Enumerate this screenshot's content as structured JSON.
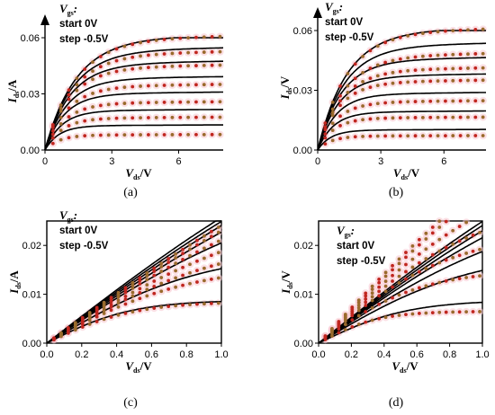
{
  "chart_data": [
    {
      "panel_label": "(a)",
      "type": "line",
      "xlim": [
        0,
        8
      ],
      "ylim": [
        0,
        0.06
      ],
      "xticks": [
        "0",
        "3",
        "6"
      ],
      "yticks": [
        "0.00",
        "0.03",
        "0.06"
      ],
      "xtick_values": [
        0,
        3,
        6
      ],
      "ytick_values": [
        0,
        0.03,
        0.06
      ],
      "arrow_axes": true,
      "annotation": [
        "V",
        "gs",
        ":",
        "start 0V",
        "step -0.5V"
      ],
      "xlabel": {
        "main": "V",
        "sub": "ds",
        "unit": "/V"
      },
      "ylabel": {
        "main": "I",
        "sub": "ds",
        "unit": "/A"
      },
      "model_curves": [
        {
          "sat": 0.0595,
          "vsat": 2.2
        },
        {
          "sat": 0.053,
          "vsat": 2.0
        },
        {
          "sat": 0.046,
          "vsat": 1.8
        },
        {
          "sat": 0.038,
          "vsat": 1.6
        },
        {
          "sat": 0.03,
          "vsat": 1.4
        },
        {
          "sat": 0.021,
          "vsat": 1.2
        },
        {
          "sat": 0.013,
          "vsat": 1.0
        }
      ],
      "measured_dots": [
        {
          "sat": 0.059,
          "vsat": 2.2
        },
        {
          "sat": 0.051,
          "vsat": 2.0
        },
        {
          "sat": 0.044,
          "vsat": 1.8
        },
        {
          "sat": 0.034,
          "vsat": 1.6
        },
        {
          "sat": 0.025,
          "vsat": 1.4
        },
        {
          "sat": 0.017,
          "vsat": 1.2
        },
        {
          "sat": 0.008,
          "vsat": 1.0
        }
      ]
    },
    {
      "panel_label": "(b)",
      "type": "line",
      "xlim": [
        0,
        8
      ],
      "ylim": [
        0,
        0.06
      ],
      "xticks": [
        "0",
        "3",
        "6"
      ],
      "yticks": [
        "0.00",
        "0.03",
        "0.06"
      ],
      "xtick_values": [
        0,
        3,
        6
      ],
      "ytick_values": [
        0,
        0.03,
        0.06
      ],
      "arrow_axes": true,
      "annotation": [
        "V",
        "gs",
        ":",
        "start 0V",
        "step -0.5V"
      ],
      "xlabel": {
        "main": "V",
        "sub": "ds",
        "unit": "/V"
      },
      "ylabel": {
        "main": "I",
        "sub": "ds",
        "unit": "/V"
      },
      "model_curves": [
        {
          "sat": 0.0595,
          "vsat": 2.2
        },
        {
          "sat": 0.052,
          "vsat": 2.0
        },
        {
          "sat": 0.045,
          "vsat": 1.8
        },
        {
          "sat": 0.037,
          "vsat": 1.6
        },
        {
          "sat": 0.028,
          "vsat": 1.4
        },
        {
          "sat": 0.019,
          "vsat": 1.2
        },
        {
          "sat": 0.01,
          "vsat": 1.0
        }
      ],
      "measured_dots": [
        {
          "sat": 0.059,
          "vsat": 2.2
        },
        {
          "sat": 0.047,
          "vsat": 2.0
        },
        {
          "sat": 0.04,
          "vsat": 1.8
        },
        {
          "sat": 0.034,
          "vsat": 1.6
        },
        {
          "sat": 0.024,
          "vsat": 1.4
        },
        {
          "sat": 0.016,
          "vsat": 1.2
        },
        {
          "sat": 0.007,
          "vsat": 1.0
        }
      ]
    },
    {
      "panel_label": "(c)",
      "type": "line",
      "xlim": [
        0,
        1.0
      ],
      "ylim": [
        0,
        0.025
      ],
      "xticks": [
        "0.0",
        "0.2",
        "0.4",
        "0.6",
        "0.8",
        "1.0"
      ],
      "xtick_values": [
        0,
        0.2,
        0.4,
        0.6,
        0.8,
        1.0
      ],
      "yticks": [
        "0.00",
        "0.01",
        "0.02"
      ],
      "ytick_values": [
        0,
        0.01,
        0.02
      ],
      "arrow_axes": false,
      "annotation": [
        "V",
        "gs",
        ":",
        "start 0V",
        "step -0.5V"
      ],
      "xlabel": {
        "main": "V",
        "sub": "ds",
        "unit": "/V"
      },
      "ylabel": {
        "main": "I",
        "sub": "ds",
        "unit": "/A"
      },
      "model_curves": [
        {
          "slope": 0.0275,
          "sat": 0.06
        },
        {
          "slope": 0.0265,
          "sat": 0.06
        },
        {
          "slope": 0.0255,
          "sat": 0.06
        },
        {
          "slope": 0.0245,
          "sat": 0.05
        },
        {
          "slope": 0.0235,
          "sat": 0.035
        },
        {
          "slope": 0.021,
          "sat": 0.019
        },
        {
          "slope": 0.018,
          "sat": 0.0088
        }
      ],
      "measured_dots": [
        {
          "slope": 0.0255,
          "sat": 0.06
        },
        {
          "slope": 0.0245,
          "sat": 0.055
        },
        {
          "slope": 0.0235,
          "sat": 0.04
        },
        {
          "slope": 0.022,
          "sat": 0.03
        },
        {
          "slope": 0.021,
          "sat": 0.022
        },
        {
          "slope": 0.0195,
          "sat": 0.016
        },
        {
          "slope": 0.017,
          "sat": 0.0085
        }
      ]
    },
    {
      "panel_label": "(d)",
      "type": "line",
      "xlim": [
        0,
        1.0
      ],
      "ylim": [
        0,
        0.025
      ],
      "xticks": [
        "0.0",
        "0.2",
        "0.4",
        "0.6",
        "0.8",
        "1.0"
      ],
      "xtick_values": [
        0,
        0.2,
        0.4,
        0.6,
        0.8,
        1.0
      ],
      "yticks": [
        "0.00",
        "0.01",
        "0.02"
      ],
      "ytick_values": [
        0,
        0.01,
        0.02
      ],
      "arrow_axes": false,
      "annotation": [
        "V",
        "gs",
        ":",
        "start 0V",
        "step -0.5V"
      ],
      "xlabel": {
        "main": "V",
        "sub": "ds",
        "unit": "/V"
      },
      "ylabel": {
        "main": "I",
        "sub": "ds",
        "unit": "/V"
      },
      "model_curves": [
        {
          "slope": 0.0265,
          "sat": 0.06
        },
        {
          "slope": 0.0255,
          "sat": 0.06
        },
        {
          "slope": 0.0245,
          "sat": 0.055
        },
        {
          "slope": 0.0235,
          "sat": 0.045
        },
        {
          "slope": 0.022,
          "sat": 0.03
        },
        {
          "slope": 0.02,
          "sat": 0.019
        },
        {
          "slope": 0.016,
          "sat": 0.0088
        }
      ],
      "measured_dots": [
        {
          "slope": 0.036,
          "sat": 0.06
        },
        {
          "slope": 0.034,
          "sat": 0.06
        },
        {
          "slope": 0.032,
          "sat": 0.04
        },
        {
          "slope": 0.03,
          "sat": 0.03
        },
        {
          "slope": 0.028,
          "sat": 0.023
        },
        {
          "slope": 0.024,
          "sat": 0.015
        },
        {
          "slope": 0.018,
          "sat": 0.0065
        }
      ]
    }
  ],
  "colors": {
    "model_line": "#000000",
    "dots_dark": "#c0261f",
    "dots_light": "#9a6a2c",
    "halo": "#f7c6cf",
    "axis": "#000000"
  }
}
